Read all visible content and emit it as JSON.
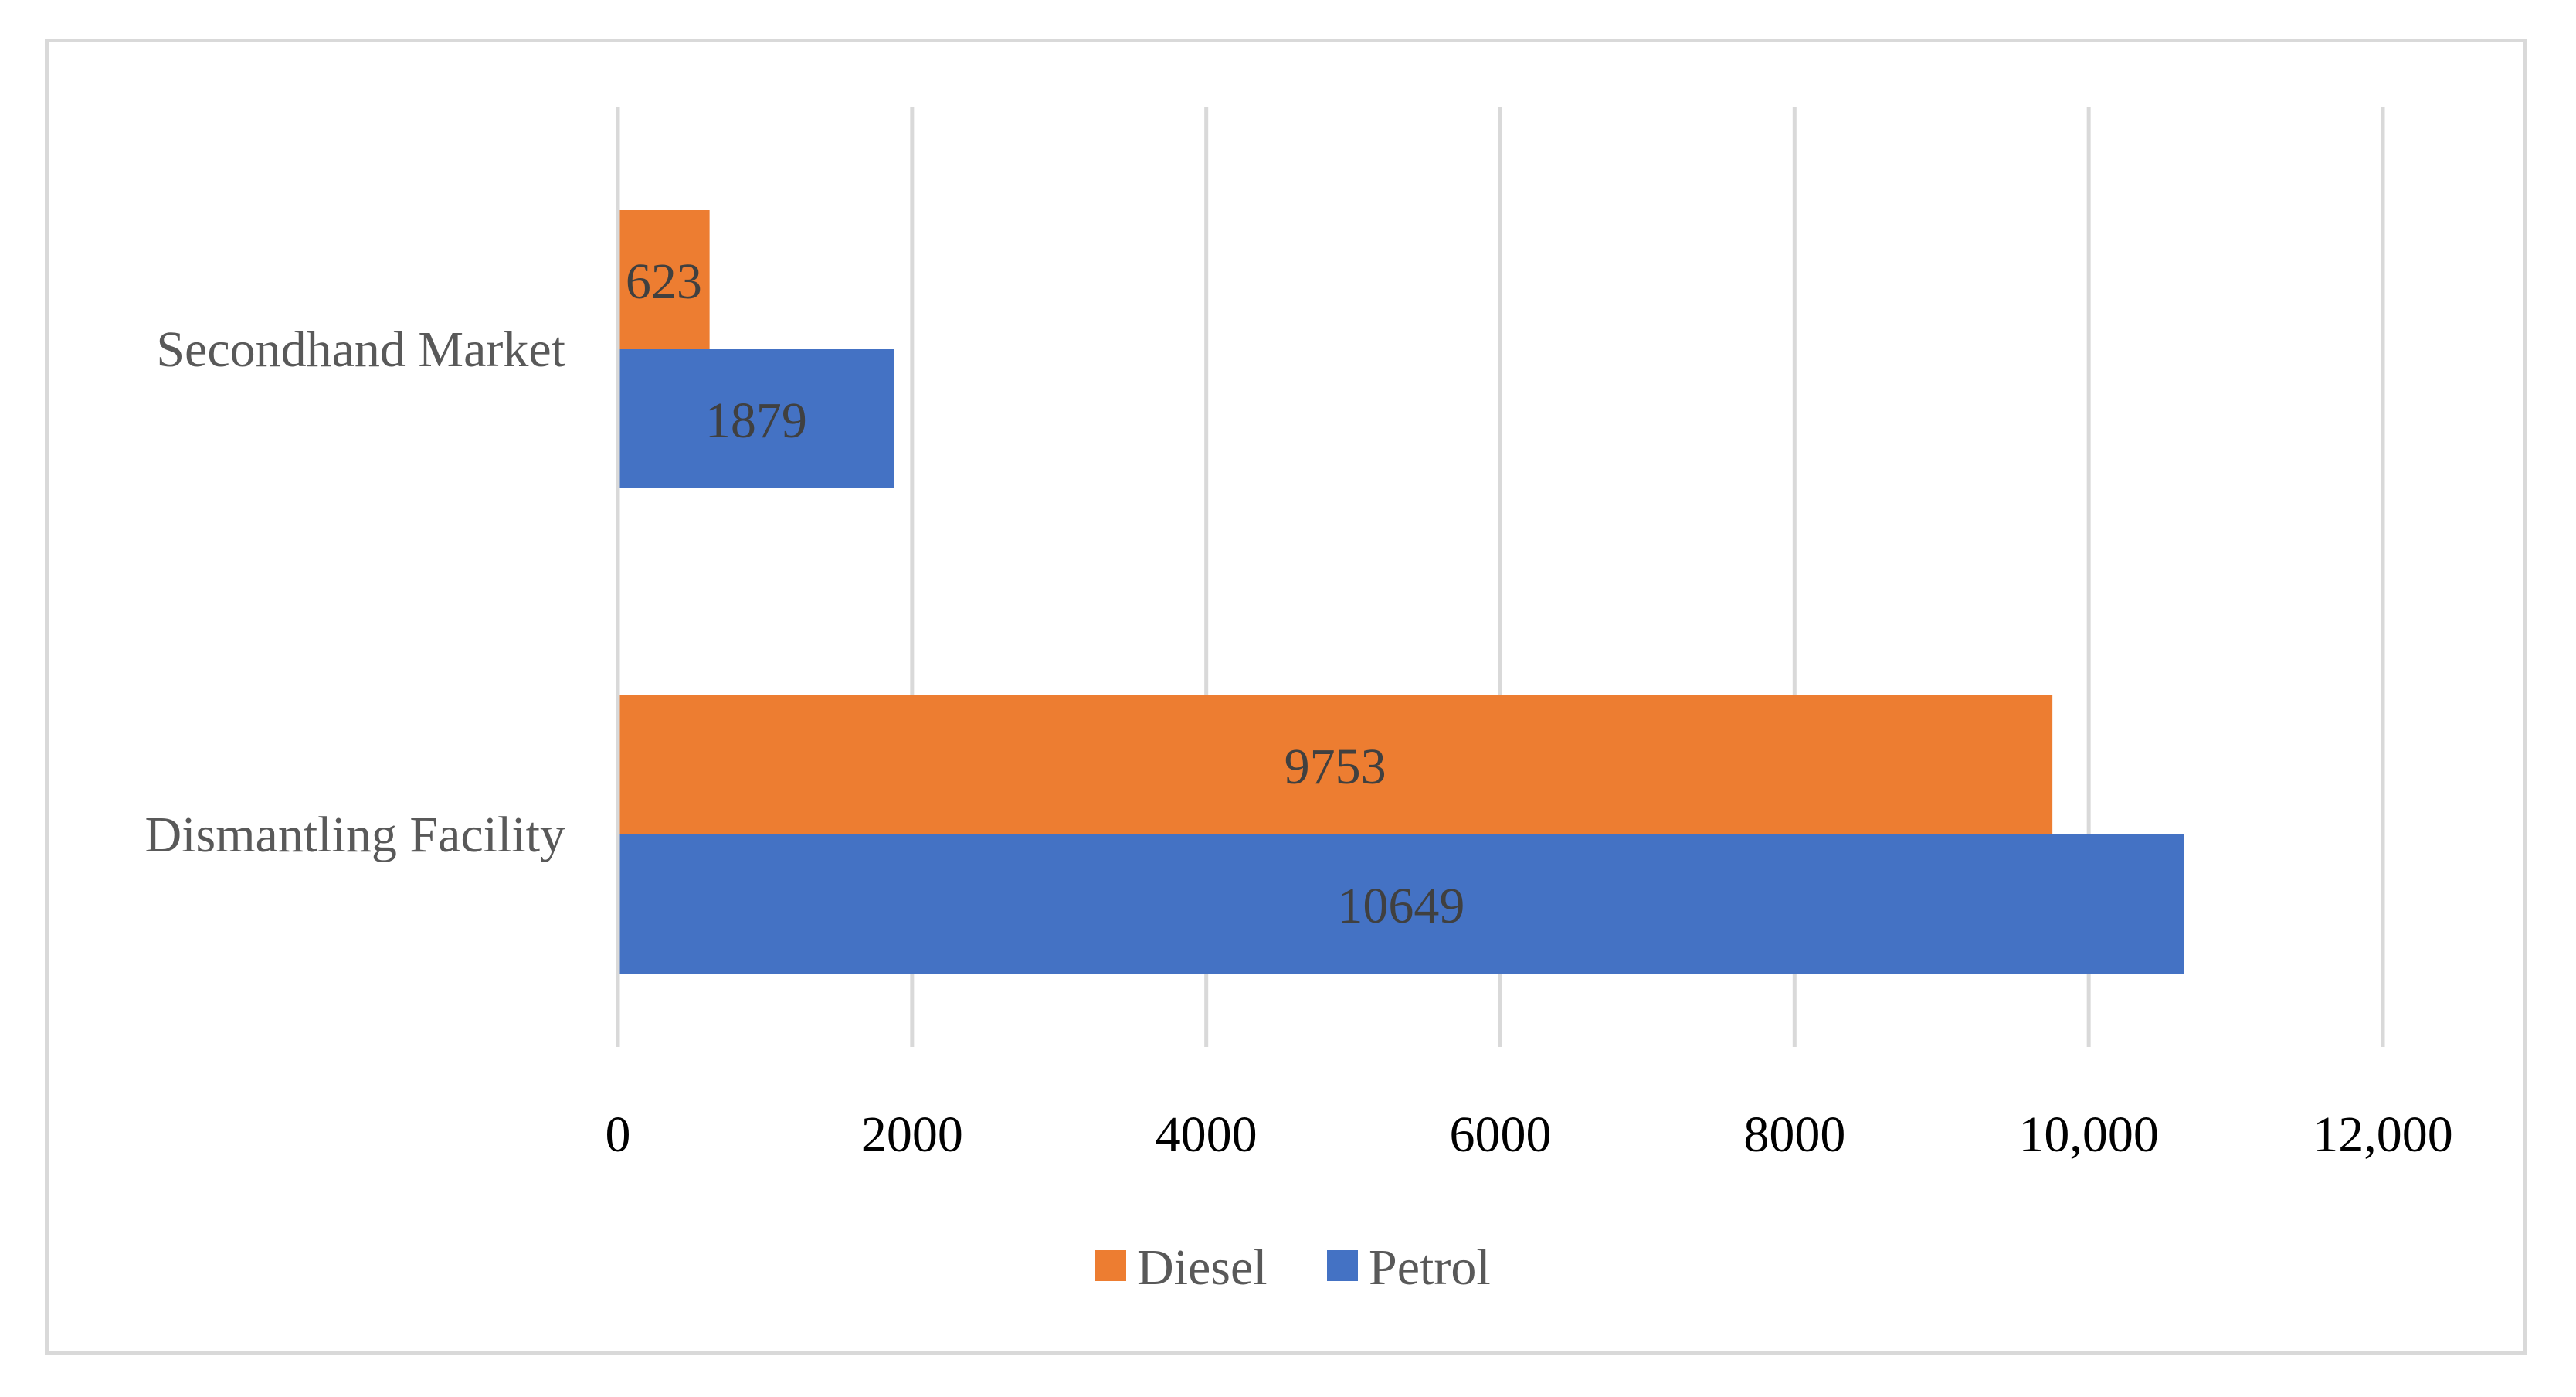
{
  "chart_data": {
    "type": "bar",
    "orientation": "horizontal",
    "title": "",
    "xlabel": "",
    "ylabel": "",
    "categories": [
      "Dismantling Facility",
      "Secondhand Market"
    ],
    "series": [
      {
        "name": "Petrol",
        "color": "#4472c4",
        "values": [
          10649,
          1879
        ]
      },
      {
        "name": "Diesel",
        "color": "#ed7d31",
        "values": [
          9753,
          623
        ]
      }
    ],
    "x_ticks": [
      0,
      2000,
      4000,
      6000,
      8000,
      10000,
      12000
    ],
    "x_tick_labels": [
      "0",
      "2000",
      "4000",
      "6000",
      "8000",
      "10,000",
      "12,000"
    ],
    "xlim": [
      0,
      12000
    ],
    "grid": true,
    "data_labels": true,
    "legend": {
      "position": "bottom",
      "order": [
        "Diesel",
        "Petrol"
      ]
    }
  }
}
